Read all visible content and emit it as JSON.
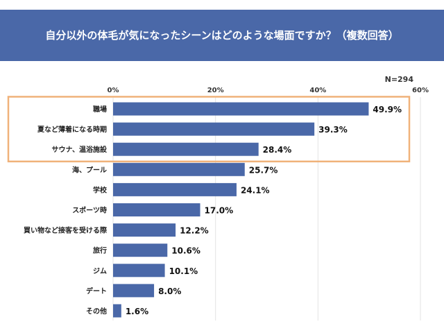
{
  "chart_data": {
    "type": "bar",
    "orientation": "horizontal",
    "title": "自分以外の体毛が気になったシーンはどのような場面ですか？（複数回答）",
    "sample_size": "N=294",
    "xlim": [
      0,
      60
    ],
    "ticks": [
      "0%",
      "20%",
      "40%",
      "60%"
    ],
    "tick_values": [
      0,
      20,
      40,
      60
    ],
    "grid": true,
    "categories": [
      "職場",
      "夏など薄着になる時期",
      "サウナ、温浴施設",
      "海、プール",
      "学校",
      "スポーツ時",
      "買い物など接客を受ける際",
      "旅行",
      "ジム",
      "デート",
      "その他"
    ],
    "values": [
      49.9,
      39.3,
      28.4,
      25.7,
      24.1,
      17.0,
      12.2,
      10.6,
      10.1,
      8.0,
      1.6
    ],
    "value_labels": [
      "49.9%",
      "39.3%",
      "28.4%",
      "25.7%",
      "24.1%",
      "17.0%",
      "12.2%",
      "10.6%",
      "10.1%",
      "8.0%",
      "1.6%"
    ],
    "highlight_count": 3,
    "colors": {
      "bar": "#4a68a8",
      "title_bg": "#4a68a8",
      "highlight": "#f0b27a",
      "grid": "#e3e3e3"
    }
  }
}
